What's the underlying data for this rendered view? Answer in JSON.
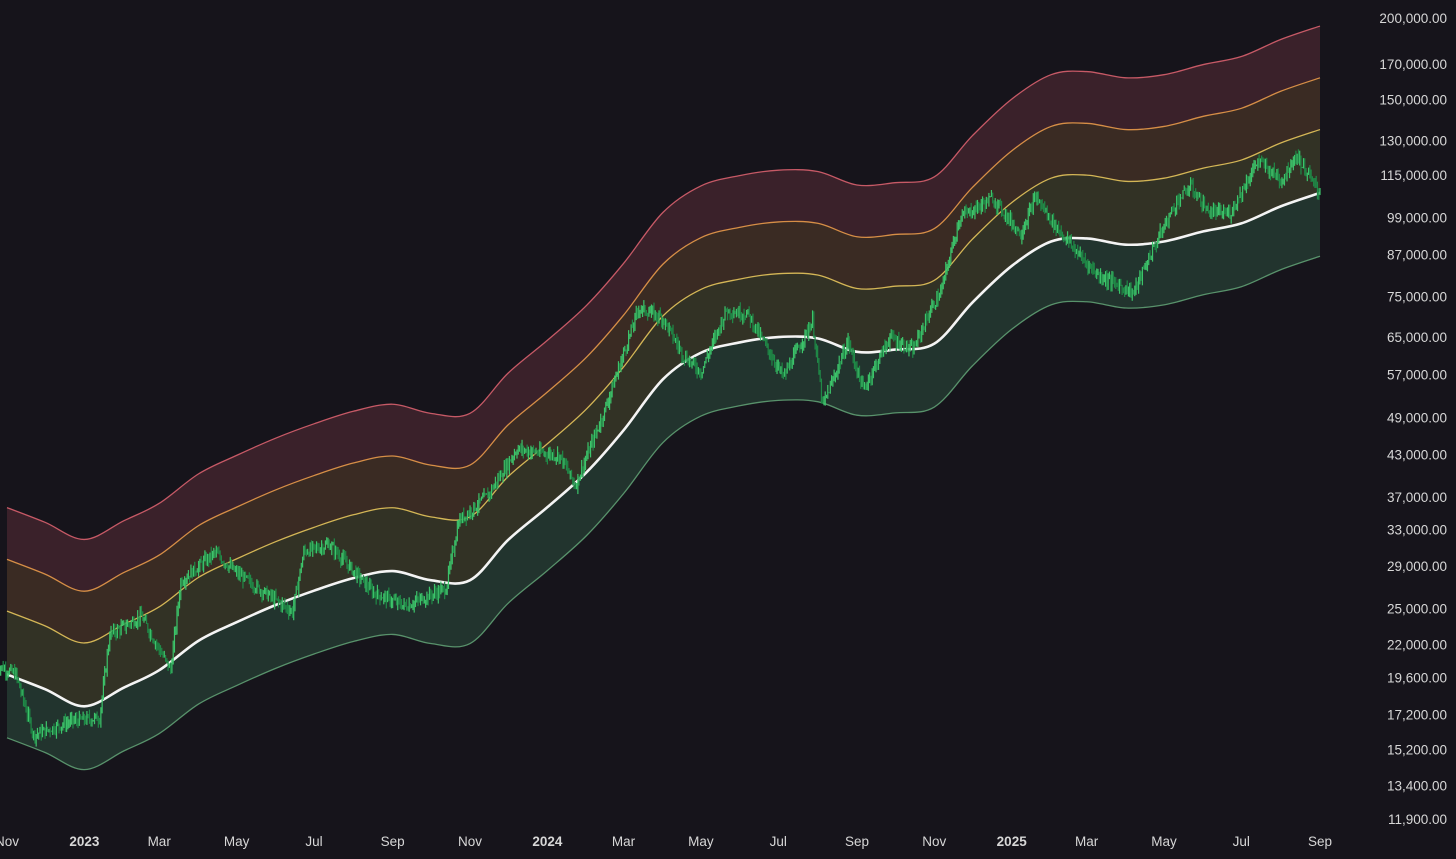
{
  "chart_data": {
    "type": "line",
    "title": "",
    "xlabel": "",
    "ylabel": "",
    "y_scale": "log",
    "ylim": [
      11000,
      205000
    ],
    "grid": false,
    "legend": "none",
    "y_ticks": [
      "200,000.00",
      "170,000.00",
      "150,000.00",
      "130,000.00",
      "115,000.00",
      "99,000.00",
      "87,000.00",
      "75,000.00",
      "65,000.00",
      "57,000.00",
      "49,000.00",
      "43,000.00",
      "37,000.00",
      "33,000.00",
      "29,000.00",
      "25,000.00",
      "22,000.00",
      "19,600.00",
      "17,200.00",
      "15,200.00",
      "13,400.00",
      "11,900.00"
    ],
    "x_ticks": [
      {
        "label": "Nov",
        "date": "2022-11-01",
        "bold": false
      },
      {
        "label": "2023",
        "date": "2023-01-01",
        "bold": true
      },
      {
        "label": "Mar",
        "date": "2023-03-01",
        "bold": false
      },
      {
        "label": "May",
        "date": "2023-05-01",
        "bold": false
      },
      {
        "label": "Jul",
        "date": "2023-07-01",
        "bold": false
      },
      {
        "label": "Sep",
        "date": "2023-09-01",
        "bold": false
      },
      {
        "label": "Nov",
        "date": "2023-11-01",
        "bold": false
      },
      {
        "label": "2024",
        "date": "2024-01-01",
        "bold": true
      },
      {
        "label": "Mar",
        "date": "2024-03-01",
        "bold": false
      },
      {
        "label": "May",
        "date": "2024-05-01",
        "bold": false
      },
      {
        "label": "Jul",
        "date": "2024-07-01",
        "bold": false
      },
      {
        "label": "Sep",
        "date": "2024-09-01",
        "bold": false
      },
      {
        "label": "Nov",
        "date": "2024-11-01",
        "bold": false
      },
      {
        "label": "2025",
        "date": "2025-01-01",
        "bold": true
      },
      {
        "label": "Mar",
        "date": "2025-03-01",
        "bold": false
      },
      {
        "label": "May",
        "date": "2025-05-01",
        "bold": false
      },
      {
        "label": "Jul",
        "date": "2025-07-01",
        "bold": false
      },
      {
        "label": "Sep",
        "date": "2025-09-01",
        "bold": false
      }
    ],
    "band_multipliers": [
      0.8,
      1.0,
      1.25,
      1.5,
      1.8
    ],
    "band_colors": {
      "lines": [
        "#5f9e73",
        "#f4f4f4",
        "#e6c55c",
        "#e89a4a",
        "#d8606e"
      ],
      "fills": [
        "#2e4f3e",
        "#4a4a2e",
        "#5a3e2a",
        "#5a2b37"
      ]
    },
    "price_color": "#2fa05a",
    "series": [
      {
        "dates": [
          "2022-10-24",
          "2022-11-08",
          "2022-11-22",
          "2022-12-22",
          "2023-01-13",
          "2023-01-21",
          "2023-02-15",
          "2023-03-10",
          "2023-03-18",
          "2023-04-14",
          "2023-05-01",
          "2023-06-14",
          "2023-06-23",
          "2023-07-13",
          "2023-08-17",
          "2023-09-11",
          "2023-10-13",
          "2023-10-23",
          "2023-11-15",
          "2023-12-08",
          "2024-01-11",
          "2024-01-23",
          "2024-02-14",
          "2024-03-13",
          "2024-04-01",
          "2024-04-17",
          "2024-05-01",
          "2024-05-21",
          "2024-06-07",
          "2024-07-05",
          "2024-07-28",
          "2024-08-05",
          "2024-08-25",
          "2024-09-06",
          "2024-09-27",
          "2024-10-15",
          "2024-10-29",
          "2024-11-06",
          "2024-11-21",
          "2024-12-17",
          "2025-01-08",
          "2025-01-20",
          "2025-02-02",
          "2025-02-25",
          "2025-03-10",
          "2025-04-07",
          "2025-04-21",
          "2025-05-10",
          "2025-05-22",
          "2025-06-05",
          "2025-06-22",
          "2025-07-14",
          "2025-08-02",
          "2025-08-13",
          "2025-08-31",
          "2025-09-01"
        ],
        "price": [
          20500,
          19800,
          16000,
          16800,
          17000,
          22800,
          24300,
          20100,
          27500,
          30400,
          28300,
          24700,
          30500,
          31300,
          26400,
          25200,
          26800,
          34000,
          37200,
          43800,
          42800,
          38500,
          49500,
          72000,
          69500,
          61000,
          57500,
          71400,
          70500,
          56500,
          68800,
          51000,
          64000,
          54000,
          65000,
          62000,
          71500,
          76000,
          99000,
          106000,
          93500,
          106500,
          97500,
          86000,
          81000,
          76000,
          87500,
          104000,
          110500,
          101000,
          100500,
          121000,
          113000,
          123500,
          108500,
          109000
        ]
      }
    ],
    "base_line": {
      "dates": [
        "2022-11-01",
        "2022-12-01",
        "2023-01-01",
        "2023-02-01",
        "2023-03-01",
        "2023-04-01",
        "2023-05-01",
        "2023-06-01",
        "2023-07-01",
        "2023-08-01",
        "2023-09-01",
        "2023-10-01",
        "2023-11-01",
        "2023-12-01",
        "2024-01-01",
        "2024-02-01",
        "2024-03-01",
        "2024-04-01",
        "2024-05-01",
        "2024-06-01",
        "2024-07-01",
        "2024-08-01",
        "2024-09-01",
        "2024-10-01",
        "2024-11-01",
        "2024-12-01",
        "2025-01-01",
        "2025-02-01",
        "2025-03-01",
        "2025-04-01",
        "2025-05-01",
        "2025-06-01",
        "2025-07-01",
        "2025-08-01",
        "2025-09-01"
      ],
      "values": [
        19800,
        18800,
        17700,
        18900,
        20100,
        22300,
        23800,
        25300,
        26600,
        27800,
        28500,
        27600,
        27600,
        31800,
        35700,
        40400,
        46800,
        56000,
        61500,
        63800,
        65000,
        64700,
        61700,
        62200,
        63500,
        73400,
        83500,
        91000,
        92000,
        90000,
        91000,
        94300,
        97000,
        103000,
        108000
      ]
    }
  }
}
